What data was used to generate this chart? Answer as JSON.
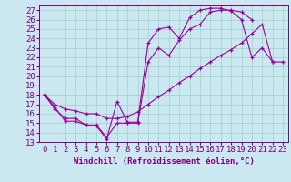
{
  "xlabel": "Windchill (Refroidissement éolien,°C)",
  "xlim": [
    -0.5,
    23.5
  ],
  "ylim": [
    13,
    27.5
  ],
  "xticks": [
    0,
    1,
    2,
    3,
    4,
    5,
    6,
    7,
    8,
    9,
    10,
    11,
    12,
    13,
    14,
    15,
    16,
    17,
    18,
    19,
    20,
    21,
    22,
    23
  ],
  "yticks": [
    13,
    14,
    15,
    16,
    17,
    18,
    19,
    20,
    21,
    22,
    23,
    24,
    25,
    26,
    27
  ],
  "bg_color": "#cbe8f0",
  "line_color": "#990099",
  "line1_x": [
    0,
    1,
    2,
    3,
    4,
    5,
    6,
    7,
    8,
    9,
    10,
    11,
    12,
    13,
    14,
    15,
    16,
    17,
    18,
    19,
    20,
    21,
    22
  ],
  "line1_y": [
    18.0,
    16.7,
    15.2,
    15.2,
    14.8,
    14.7,
    13.3,
    17.3,
    15.1,
    15.1,
    23.5,
    25.0,
    25.2,
    24.0,
    26.2,
    27.0,
    27.2,
    27.2,
    26.9,
    26.0,
    22.0,
    23.0,
    21.5
  ],
  "line2_x": [
    0,
    1,
    2,
    3,
    4,
    5,
    6,
    7,
    8,
    9,
    10,
    11,
    12,
    13,
    14,
    15,
    16,
    17,
    18,
    19,
    20
  ],
  "line2_y": [
    18.0,
    16.5,
    15.5,
    15.5,
    14.8,
    14.8,
    13.5,
    15.0,
    15.0,
    15.0,
    21.5,
    23.0,
    22.2,
    23.8,
    25.0,
    25.5,
    26.8,
    27.0,
    27.0,
    26.8,
    26.0
  ],
  "line3_x": [
    0,
    1,
    2,
    3,
    4,
    5,
    6,
    7,
    8,
    9,
    10,
    11,
    12,
    13,
    14,
    15,
    16,
    17,
    18,
    19,
    20,
    21,
    22,
    23
  ],
  "line3_y": [
    18.0,
    17.0,
    16.5,
    16.3,
    16.0,
    16.0,
    15.5,
    15.5,
    15.7,
    16.2,
    17.0,
    17.8,
    18.5,
    19.3,
    20.0,
    20.8,
    21.5,
    22.2,
    22.8,
    23.5,
    24.5,
    25.5,
    21.5,
    21.5
  ],
  "grid_color": "#9ecfcc",
  "font_color": "#7b007b",
  "font_size": 6.5
}
